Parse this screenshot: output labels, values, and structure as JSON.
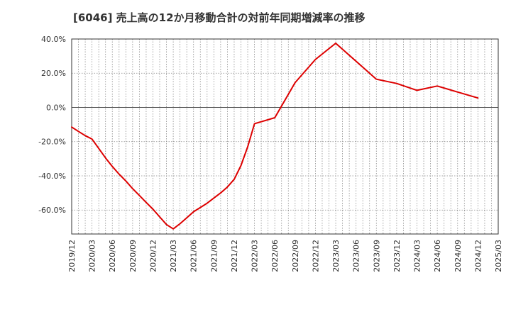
{
  "chart_data": {
    "type": "line",
    "title": "[6046]  売上高の12か月移動合計の対前年同期増減率の推移",
    "xlabel": "",
    "ylabel": "",
    "ylim": [
      -74,
      40
    ],
    "grid": true,
    "y_ticks": [
      40,
      20,
      0,
      -20,
      -40,
      -60
    ],
    "y_tick_labels": [
      "40.0%",
      "20.0%",
      "0.0%",
      "-20.0%",
      "-40.0%",
      "-60.0%"
    ],
    "x_tick_labels": [
      "2019/12",
      "2020/03",
      "2020/06",
      "2020/09",
      "2020/12",
      "2021/03",
      "2021/06",
      "2021/09",
      "2021/12",
      "2022/03",
      "2022/06",
      "2022/09",
      "2022/12",
      "2023/03",
      "2023/06",
      "2023/09",
      "2023/12",
      "2024/03",
      "2024/06",
      "2024/09",
      "2024/12",
      "2025/03"
    ],
    "series": [
      {
        "name": "売上高の12か月移動合計の対前年同期増減率",
        "color": "#dd0000",
        "x": [
          "2019/12",
          "2020/01",
          "2020/02",
          "2020/03",
          "2020/04",
          "2020/05",
          "2020/06",
          "2020/07",
          "2020/08",
          "2020/09",
          "2020/10",
          "2020/11",
          "2020/12",
          "2021/01",
          "2021/02",
          "2021/03",
          "2021/04",
          "2021/05",
          "2021/06",
          "2021/07",
          "2021/08",
          "2021/09",
          "2021/10",
          "2021/11",
          "2021/12",
          "2022/01",
          "2022/02",
          "2022/03",
          "2022/06",
          "2022/09",
          "2022/12",
          "2023/03",
          "2023/06",
          "2023/09",
          "2023/12",
          "2024/03",
          "2024/06",
          "2024/09",
          "2024/12"
        ],
        "values": [
          -11.5,
          -14,
          -16.5,
          -18.5,
          -24,
          -29.5,
          -34.5,
          -39,
          -43,
          -47.5,
          -51.5,
          -55.5,
          -59.5,
          -64,
          -68.5,
          -71,
          -68,
          -64.5,
          -61,
          -58.5,
          -56,
          -53,
          -50,
          -46.5,
          -42,
          -34,
          -23,
          -9.5,
          -6,
          14.5,
          28,
          37.5,
          27,
          16.5,
          14,
          10,
          12.5,
          9,
          5.5
        ]
      }
    ]
  }
}
